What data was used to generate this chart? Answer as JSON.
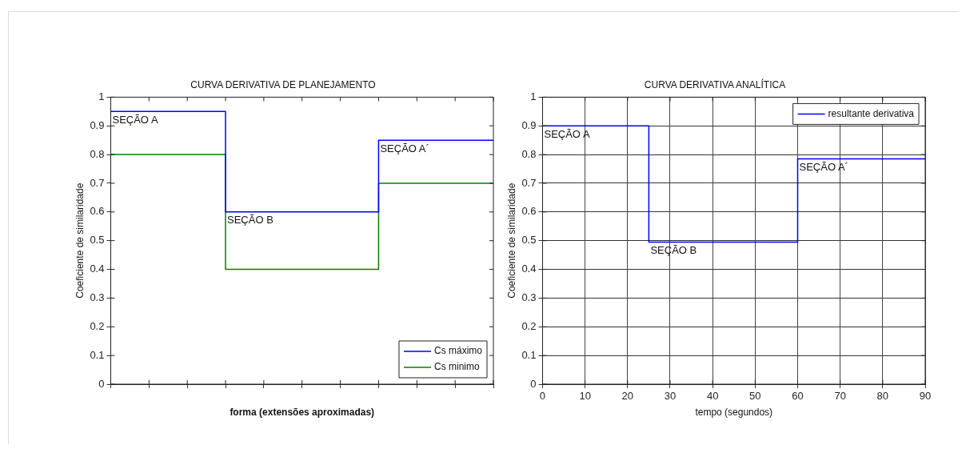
{
  "chart_data": [
    {
      "type": "step",
      "title": "CURVA DERIVATIVA DE PLANEJAMENTO",
      "xlabel": "forma (extensões aproximadas)",
      "ylabel": "Coeficiente de similaridade",
      "categories": [
        null,
        null,
        null,
        null,
        null,
        null,
        null,
        null,
        null,
        null,
        null
      ],
      "series": [
        {
          "name": "Cs máximo",
          "color": "#0000ff",
          "values": [
            0.95,
            0.95,
            0.95,
            0.6,
            0.6,
            0.6,
            0.6,
            0.85,
            0.85,
            0.85,
            0.85
          ]
        },
        {
          "name": "Cs minimo",
          "color": "#008000",
          "values": [
            0.8,
            0.8,
            0.8,
            0.4,
            0.4,
            0.4,
            0.4,
            0.7,
            0.7,
            0.7,
            0.7
          ]
        }
      ],
      "ylim": [
        0,
        1
      ],
      "yticks": [
        0,
        0.1,
        0.2,
        0.3,
        0.4,
        0.5,
        0.6,
        0.7,
        0.8,
        0.9,
        1
      ],
      "tick_labels": "y",
      "grid": false,
      "legend": "bottom right",
      "annotations": [
        "SEÇÃO A",
        "SEÇÃO B",
        "SEÇÃO A´"
      ]
    },
    {
      "type": "step",
      "title": "CURVA DERIVATIVA ANALÍTICA",
      "xlabel": "tempo (segundos)",
      "ylabel": "Coeficiente de similaridade",
      "x": [
        0,
        25,
        60,
        90
      ],
      "series": [
        {
          "name": "resultante derivativa",
          "color": "#0000ff",
          "values": [
            0.9,
            0.495,
            0.785,
            0.785
          ]
        }
      ],
      "xlim": [
        0,
        90
      ],
      "xticks": [
        0,
        10,
        20,
        30,
        40,
        50,
        60,
        70,
        80,
        90
      ],
      "ylim": [
        0,
        1
      ],
      "yticks": [
        0,
        0.1,
        0.2,
        0.3,
        0.4,
        0.5,
        0.6,
        0.7,
        0.8,
        0.9,
        1
      ],
      "grid": true,
      "legend": "top right",
      "annotations": [
        "SEÇÃO A",
        "SEÇÃO B",
        "SEÇÃO A´"
      ]
    }
  ]
}
